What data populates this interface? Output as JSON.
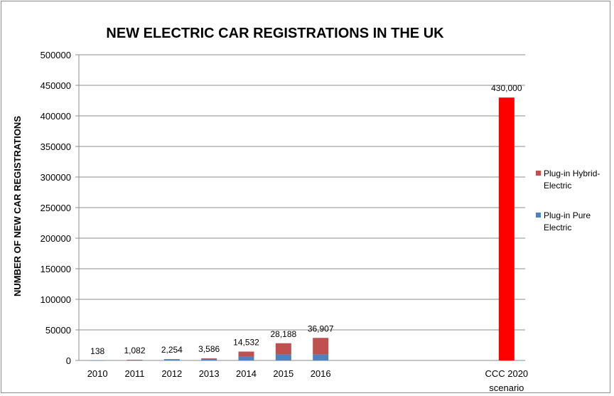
{
  "chart_data": {
    "type": "bar",
    "stacked": true,
    "title": "NEW ELECTRIC CAR REGISTRATIONS IN THE UK",
    "ylabel": "NUMBER OF NEW CAR REGISTRATIONS",
    "xlabel": "",
    "ylim": [
      0,
      500000
    ],
    "yticks": [
      "0",
      "50000",
      "100000",
      "150000",
      "200000",
      "250000",
      "300000",
      "350000",
      "400000",
      "450000",
      "500000"
    ],
    "grid": true,
    "categories": [
      {
        "label": "2010",
        "slot": 0
      },
      {
        "label": "2011",
        "slot": 1
      },
      {
        "label": "2012",
        "slot": 2
      },
      {
        "label": "2013",
        "slot": 3
      },
      {
        "label": "2014",
        "slot": 4
      },
      {
        "label": "2015",
        "slot": 5
      },
      {
        "label": "2016",
        "slot": 6
      },
      {
        "label": "CCC 2020\nscenario",
        "slot": 11
      }
    ],
    "series": [
      {
        "name": "Plug-in Pure Electric",
        "color": "#4f81bd",
        "values": [
          138,
          1052,
          1400,
          2600,
          6500,
          10000,
          10000,
          0
        ]
      },
      {
        "name": "Plug-in Hybrid-Electric",
        "color": "#c0504d",
        "values": [
          0,
          30,
          854,
          986,
          8032,
          18188,
          26907,
          430000
        ]
      }
    ],
    "highlight_color": "#ff0000",
    "totals_labels": [
      "138",
      "1,082",
      "2,254",
      "3,586",
      "14,532",
      "28,188",
      "36,907",
      "430,000"
    ],
    "legend": {
      "position": "right",
      "entries": [
        {
          "line1": "Plug-in Hybrid-",
          "line2": "Electric",
          "color": "#c0504d"
        },
        {
          "line1": "Plug-in Pure",
          "line2": "Electric",
          "color": "#4f81bd"
        }
      ]
    }
  }
}
